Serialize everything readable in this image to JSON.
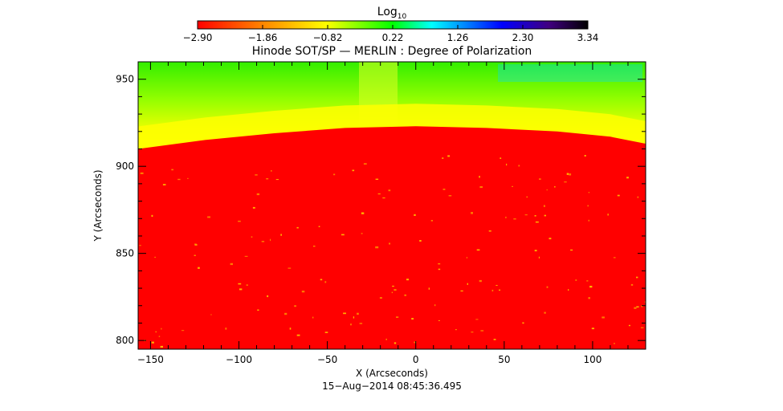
{
  "chart_data": {
    "type": "heatmap",
    "title": "Hinode SOT/SP — MERLIN : Degree of Polarization",
    "xlabel": "X (Arcseconds)",
    "ylabel": "Y (Arcseconds)",
    "xlim": [
      -157,
      130
    ],
    "ylim": [
      795,
      960
    ],
    "x_ticks": [
      -150,
      -100,
      -50,
      0,
      50,
      100
    ],
    "y_ticks": [
      800,
      850,
      900,
      950
    ],
    "x_tick_labels": [
      "−150",
      "−100",
      "−50",
      "0",
      "50",
      "100"
    ],
    "y_tick_labels": [
      "800",
      "850",
      "900",
      "950"
    ],
    "colorbar": {
      "title_base": "Log",
      "title_sub": "10",
      "range": [
        -2.9,
        3.34
      ],
      "ticks": [
        -2.9,
        -1.86,
        -0.82,
        0.22,
        1.26,
        2.3,
        3.34
      ],
      "tick_labels": [
        "−2.90",
        "−1.86",
        "−0.82",
        "0.22",
        "1.26",
        "2.30",
        "3.34"
      ],
      "colors": [
        "#ff0000",
        "#ff8800",
        "#ffff00",
        "#00ff00",
        "#00ffff",
        "#0000ff",
        "#400080",
        "#000000"
      ]
    },
    "limb": {
      "points": [
        [
          -157,
          910
        ],
        [
          -120,
          915
        ],
        [
          -80,
          919
        ],
        [
          -40,
          922
        ],
        [
          0,
          923
        ],
        [
          40,
          922
        ],
        [
          80,
          920
        ],
        [
          110,
          917
        ],
        [
          130,
          913
        ]
      ]
    },
    "regions": {
      "disk_value": -2.9,
      "near_limb_value": -0.82,
      "off_limb_value": -0.35,
      "top_edge_value": -0.2
    },
    "timestamp": "15−Aug−2014 08:45:36.495"
  }
}
